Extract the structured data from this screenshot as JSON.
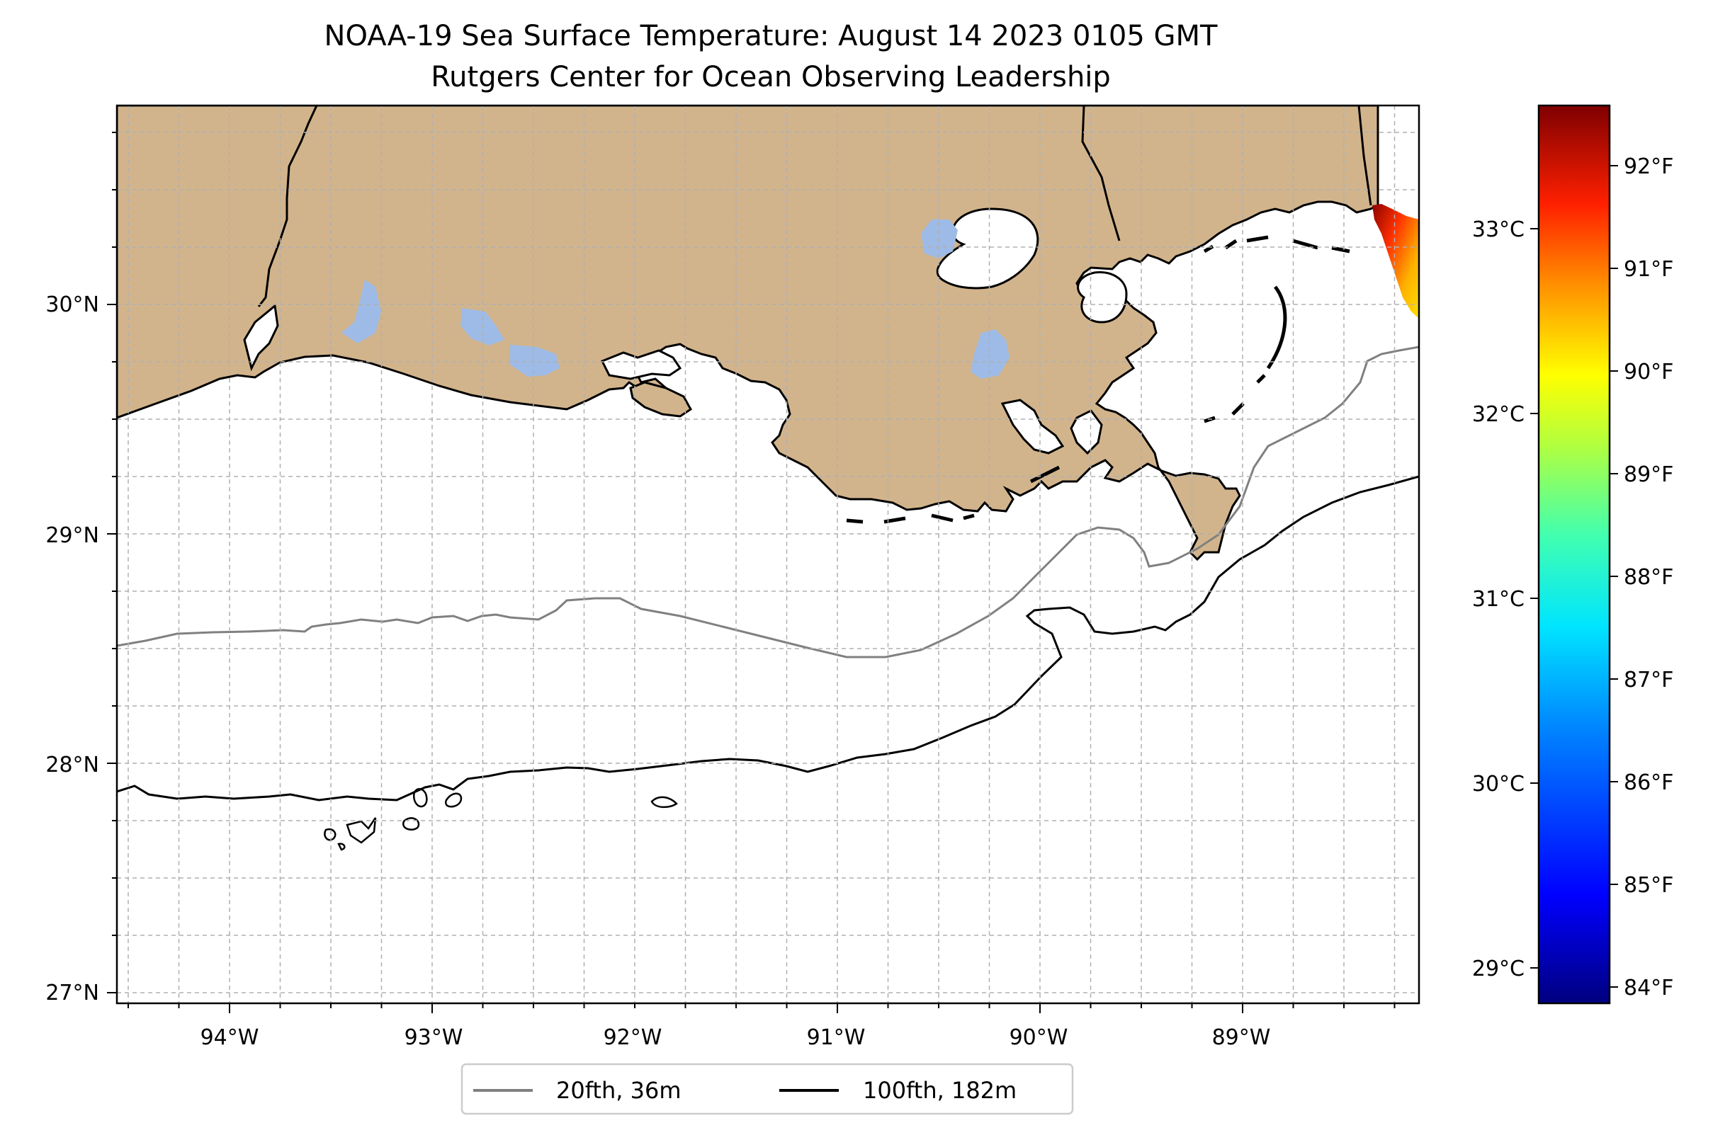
{
  "title": {
    "line1": "NOAA-19 Sea Surface Temperature: August 14 2023 0105 GMT",
    "line2": "Rutgers Center for Ocean Observing Leadership"
  },
  "map": {
    "lon_labels": [
      "94°W",
      "93°W",
      "92°W",
      "91°W",
      "90°W",
      "89°W"
    ],
    "lat_labels": [
      "30°N",
      "29°N",
      "28°N",
      "27°N"
    ],
    "colors": {
      "land": "#d2b48c",
      "lakes": "#9dbbe6",
      "isobath_20fth": "#808080",
      "isobath_100fth": "#000000",
      "grid": "#b0b0b0"
    }
  },
  "legend": {
    "items": [
      {
        "label": "20fth, 36m",
        "color": "#808080"
      },
      {
        "label": "100fth, 182m",
        "color": "#000000"
      }
    ]
  },
  "colorbar": {
    "celsius_labels": [
      "33°C",
      "32°C",
      "31°C",
      "30°C",
      "29°C"
    ],
    "fahrenheit_labels": [
      "92°F",
      "91°F",
      "90°F",
      "89°F",
      "88°F",
      "87°F",
      "86°F",
      "85°F",
      "84°F"
    ],
    "colormap": [
      "#00007f",
      "#0000ff",
      "#007fff",
      "#00ffff",
      "#7fff7f",
      "#ffff00",
      "#ff7f00",
      "#ff0000",
      "#7f0000"
    ]
  }
}
